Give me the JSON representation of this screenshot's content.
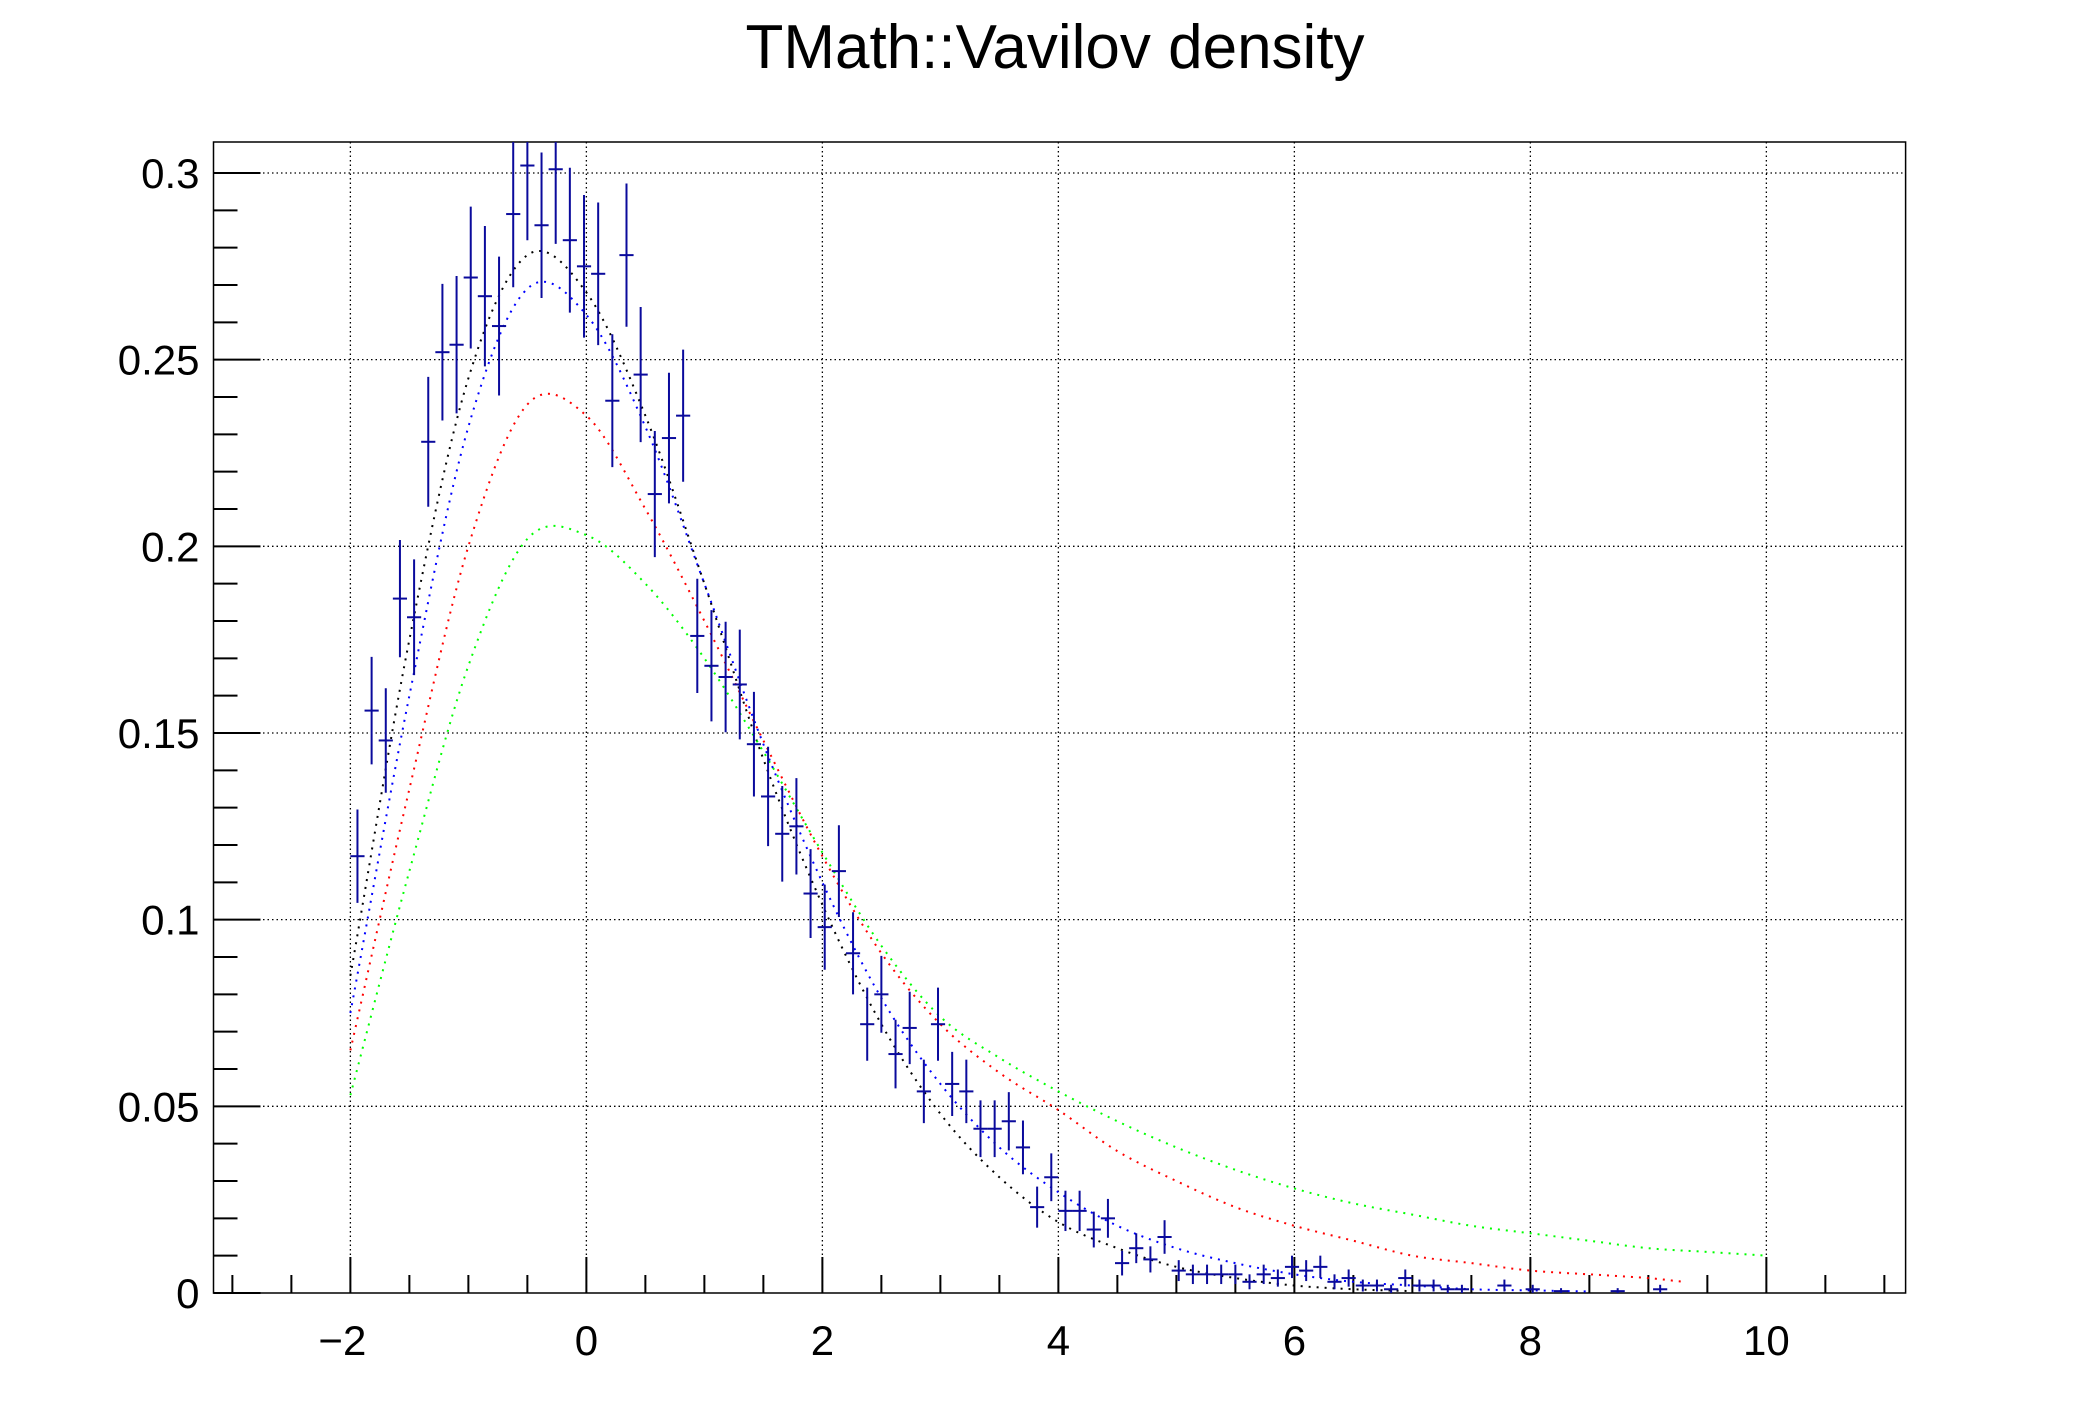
{
  "chart_data": {
    "type": "scatter",
    "title": "TMath::Vavilov density",
    "xlabel": "",
    "ylabel": "",
    "xlim": [
      -3.16,
      11.18
    ],
    "ylim": [
      0,
      0.3083
    ],
    "grid": true,
    "x_ticks": [
      "-2",
      "0",
      "2",
      "4",
      "6",
      "8",
      "10"
    ],
    "x_tick_values": [
      -2,
      0,
      2,
      4,
      6,
      8,
      10
    ],
    "y_ticks": [
      "0",
      "0.05",
      "0.1",
      "0.15",
      "0.2",
      "0.25",
      "0.3"
    ],
    "y_tick_values": [
      0,
      0.05,
      0.1,
      0.15,
      0.2,
      0.25,
      0.3
    ],
    "histogram": {
      "color": "#0a0a9c",
      "bin_width": 0.12,
      "x": [
        -1.94,
        -1.82,
        -1.7,
        -1.58,
        -1.46,
        -1.34,
        -1.22,
        -1.1,
        -0.98,
        -0.86,
        -0.74,
        -0.62,
        -0.5,
        -0.38,
        -0.26,
        -0.14,
        -0.02,
        0.1,
        0.22,
        0.34,
        0.46,
        0.58,
        0.7,
        0.82,
        0.94,
        1.06,
        1.18,
        1.3,
        1.42,
        1.54,
        1.66,
        1.78,
        1.9,
        2.02,
        2.14,
        2.26,
        2.38,
        2.5,
        2.62,
        2.74,
        2.86,
        2.98,
        3.1,
        3.22,
        3.34,
        3.46,
        3.58,
        3.7,
        3.82,
        3.94,
        4.06,
        4.18,
        4.3,
        4.42,
        4.54,
        4.66,
        4.78,
        4.9,
        5.02,
        5.14,
        5.26,
        5.38,
        5.5,
        5.62,
        5.74,
        5.86,
        5.98,
        6.1,
        6.22,
        6.34,
        6.46,
        6.58,
        6.7,
        6.82,
        6.94,
        7.06,
        7.18,
        7.3,
        7.42,
        7.78,
        8.02,
        8.26,
        8.74,
        9.1
      ],
      "y": [
        0.117,
        0.156,
        0.148,
        0.186,
        0.181,
        0.228,
        0.252,
        0.254,
        0.272,
        0.267,
        0.259,
        0.289,
        0.302,
        0.286,
        0.301,
        0.282,
        0.275,
        0.273,
        0.239,
        0.278,
        0.246,
        0.214,
        0.229,
        0.235,
        0.176,
        0.168,
        0.165,
        0.163,
        0.147,
        0.133,
        0.123,
        0.125,
        0.107,
        0.098,
        0.113,
        0.091,
        0.072,
        0.08,
        0.064,
        0.071,
        0.054,
        0.072,
        0.056,
        0.054,
        0.044,
        0.044,
        0.046,
        0.039,
        0.023,
        0.031,
        0.022,
        0.022,
        0.017,
        0.02,
        0.008,
        0.012,
        0.009,
        0.015,
        0.006,
        0.005,
        0.005,
        0.005,
        0.005,
        0.003,
        0.005,
        0.004,
        0.007,
        0.006,
        0.007,
        0.003,
        0.004,
        0.002,
        0.002,
        0.001,
        0.004,
        0.002,
        0.002,
        0.001,
        0.001,
        0.002,
        0.001,
        0.0005,
        0.0005,
        0.001
      ],
      "yerr": [
        0.0125,
        0.0144,
        0.014,
        0.0157,
        0.0155,
        0.0174,
        0.0183,
        0.0184,
        0.019,
        0.0188,
        0.0186,
        0.0196,
        0.02,
        0.0195,
        0.02,
        0.0194,
        0.0191,
        0.0191,
        0.0178,
        0.0192,
        0.0181,
        0.0169,
        0.0175,
        0.0177,
        0.0153,
        0.0149,
        0.0148,
        0.0147,
        0.014,
        0.0133,
        0.0128,
        0.0129,
        0.0119,
        0.0114,
        0.0123,
        0.011,
        0.0098,
        0.0103,
        0.0092,
        0.0097,
        0.0085,
        0.0098,
        0.0086,
        0.0085,
        0.0076,
        0.0076,
        0.0078,
        0.0072,
        0.0055,
        0.0064,
        0.0054,
        0.0054,
        0.0048,
        0.0052,
        0.0033,
        0.004,
        0.0035,
        0.0045,
        0.0028,
        0.0026,
        0.0026,
        0.0026,
        0.0026,
        0.002,
        0.0026,
        0.0023,
        0.003,
        0.0028,
        0.003,
        0.002,
        0.0023,
        0.0016,
        0.0016,
        0.0012,
        0.0023,
        0.0016,
        0.0016,
        0.0012,
        0.0012,
        0.0016,
        0.0012,
        0.0008,
        0.0008,
        0.0012
      ]
    },
    "series": [
      {
        "color": "#000000",
        "x": [
          -2,
          -1.5,
          -1,
          -0.5,
          0,
          0.5,
          1,
          1.5,
          2,
          2.5,
          3,
          3.5,
          4,
          4.5,
          5,
          5.5,
          6,
          6.5,
          7
        ],
        "y": [
          0.085,
          0.175,
          0.245,
          0.278,
          0.268,
          0.235,
          0.19,
          0.143,
          0.104,
          0.072,
          0.048,
          0.031,
          0.019,
          0.012,
          0.007,
          0.004,
          0.002,
          0.001,
          0.0005
        ]
      },
      {
        "color": "#0000ff",
        "x": [
          -2,
          -1.5,
          -1,
          -0.5,
          0,
          0.5,
          1,
          1.5,
          2,
          2.5,
          3,
          3.5,
          4,
          4.5,
          5,
          5.5,
          6,
          6.5,
          7,
          7.5,
          8,
          8.5
        ],
        "y": [
          0.075,
          0.16,
          0.232,
          0.269,
          0.262,
          0.232,
          0.19,
          0.147,
          0.11,
          0.079,
          0.056,
          0.039,
          0.027,
          0.018,
          0.012,
          0.008,
          0.005,
          0.003,
          0.002,
          0.001,
          0.0007,
          0.0004
        ]
      },
      {
        "color": "#ff0000",
        "x": [
          -2,
          -1.5,
          -1,
          -0.5,
          0,
          0.5,
          1,
          1.5,
          2,
          2.5,
          3,
          3.5,
          4,
          4.5,
          5,
          5.5,
          6,
          6.5,
          7,
          7.5,
          8,
          8.5,
          9,
          9.3
        ],
        "y": [
          0.065,
          0.135,
          0.2,
          0.238,
          0.235,
          0.21,
          0.18,
          0.148,
          0.117,
          0.091,
          0.072,
          0.059,
          0.049,
          0.038,
          0.03,
          0.023,
          0.018,
          0.014,
          0.01,
          0.008,
          0.006,
          0.005,
          0.004,
          0.003
        ]
      },
      {
        "color": "#00ff00",
        "x": [
          -2,
          -1.5,
          -1,
          -0.5,
          0,
          0.5,
          1,
          1.5,
          2,
          2.5,
          3,
          3.5,
          4,
          4.5,
          5,
          5.5,
          6,
          6.5,
          7,
          7.5,
          8,
          8.5,
          9,
          9.5,
          10
        ],
        "y": [
          0.053,
          0.113,
          0.168,
          0.202,
          0.203,
          0.19,
          0.17,
          0.145,
          0.118,
          0.093,
          0.074,
          0.063,
          0.054,
          0.046,
          0.039,
          0.033,
          0.028,
          0.024,
          0.021,
          0.018,
          0.016,
          0.014,
          0.012,
          0.011,
          0.01
        ]
      }
    ]
  }
}
